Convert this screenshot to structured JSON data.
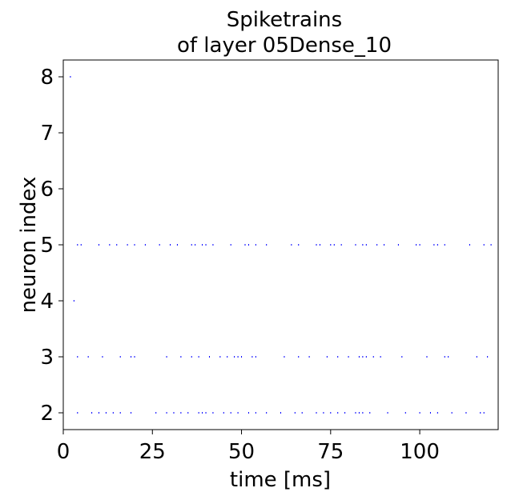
{
  "chart_data": {
    "type": "scatter",
    "title_lines": [
      "Spiketrains",
      "of layer 05Dense_10"
    ],
    "xlabel": "time [ms]",
    "ylabel": "neuron index",
    "xlim": [
      0,
      122
    ],
    "ylim": [
      1.7,
      8.3
    ],
    "xticks": [
      0,
      25,
      50,
      75,
      100
    ],
    "yticks": [
      2,
      3,
      4,
      5,
      6,
      7,
      8
    ],
    "grid": false,
    "legend": "none",
    "marker_color": "#0000ff",
    "series": [
      {
        "neuron": 8,
        "times": [
          2
        ]
      },
      {
        "neuron": 5,
        "times": [
          4,
          5,
          10,
          13,
          15,
          18,
          20,
          23,
          27,
          30,
          32,
          36,
          37,
          39,
          40,
          42,
          47,
          51,
          52,
          54,
          57,
          64,
          66,
          71,
          72,
          75,
          76,
          78,
          82,
          84,
          85,
          88,
          90,
          94,
          99,
          100,
          104,
          105,
          107,
          114,
          118,
          120
        ]
      },
      {
        "neuron": 4,
        "times": [
          3
        ]
      },
      {
        "neuron": 3,
        "times": [
          4,
          7,
          11,
          16,
          19,
          20,
          29,
          33,
          36,
          38,
          41,
          44,
          46,
          48,
          49,
          50,
          53,
          54,
          62,
          66,
          69,
          74,
          77,
          80,
          83,
          84,
          85,
          87,
          89,
          95,
          102,
          107,
          108,
          116,
          119
        ]
      },
      {
        "neuron": 2,
        "times": [
          4,
          8,
          10,
          12,
          14,
          16,
          19,
          26,
          29,
          31,
          33,
          35,
          38,
          39,
          40,
          42,
          45,
          47,
          49,
          52,
          54,
          57,
          61,
          65,
          67,
          71,
          73,
          75,
          77,
          79,
          82,
          83,
          84,
          86,
          91,
          96,
          100,
          103,
          105,
          109,
          113,
          117,
          118
        ]
      }
    ]
  }
}
